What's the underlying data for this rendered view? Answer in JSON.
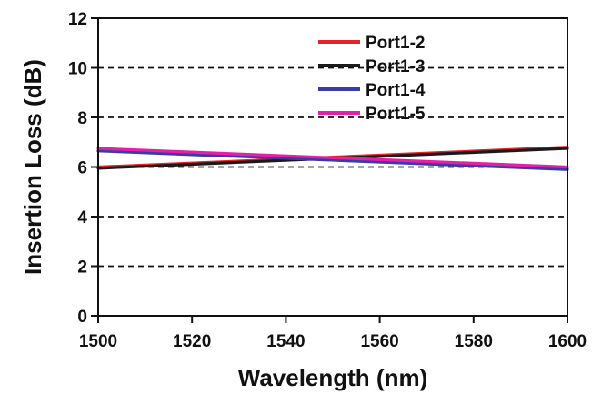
{
  "chart_data": {
    "type": "line",
    "title": "",
    "xlabel": "Wavelength (nm)",
    "ylabel": "Insertion Loss (dB)",
    "xlim": [
      1500,
      1600
    ],
    "ylim": [
      0,
      12
    ],
    "xticks": [
      "1500",
      "1520",
      "1540",
      "1560",
      "1580",
      "1600"
    ],
    "yticks": [
      "0",
      "2",
      "4",
      "6",
      "8",
      "10",
      "12"
    ],
    "grid": "horizontal dashed",
    "legend_position": "top-right",
    "series": [
      {
        "name": "Port1-2",
        "color": "#e8202a",
        "x": [
          1500,
          1600
        ],
        "y": [
          6.0,
          6.8
        ]
      },
      {
        "name": "Port1-3",
        "color": "#1a1a1a",
        "x": [
          1500,
          1600
        ],
        "y": [
          5.95,
          6.75
        ]
      },
      {
        "name": "Port1-4",
        "color": "#3a3aa8",
        "x": [
          1500,
          1600
        ],
        "y": [
          6.65,
          5.9
        ]
      },
      {
        "name": "Port1-5",
        "color": "#e61fa8",
        "x": [
          1500,
          1600
        ],
        "y": [
          6.75,
          6.0
        ]
      }
    ]
  }
}
